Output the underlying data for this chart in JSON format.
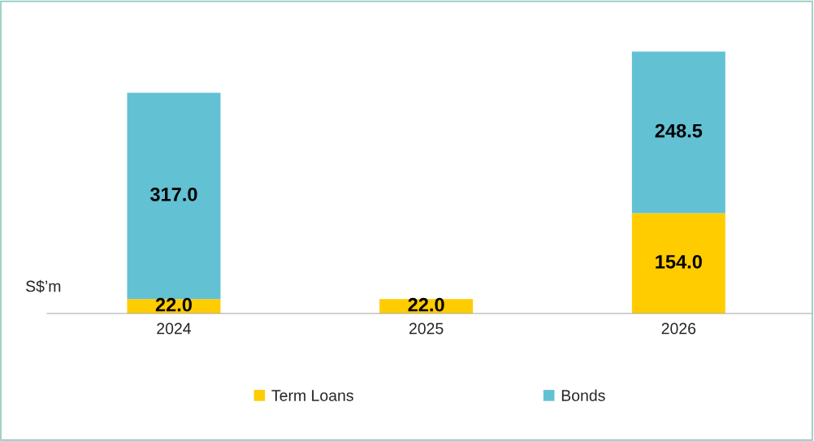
{
  "chart_data": {
    "type": "bar",
    "stacked": true,
    "ylabel": "S$’m",
    "categories": [
      "2024",
      "2025",
      "2026"
    ],
    "series": [
      {
        "name": "Term Loans",
        "color": "#ffcc00",
        "values": [
          22.0,
          22.0,
          154.0
        ],
        "value_labels": [
          "22.0",
          "22.0",
          "154.0"
        ]
      },
      {
        "name": "Bonds",
        "color": "#62c1d3",
        "values": [
          317.0,
          null,
          248.5
        ],
        "value_labels": [
          "317.0",
          null,
          "248.5"
        ]
      }
    ],
    "legend": "bottom",
    "grid": false
  }
}
